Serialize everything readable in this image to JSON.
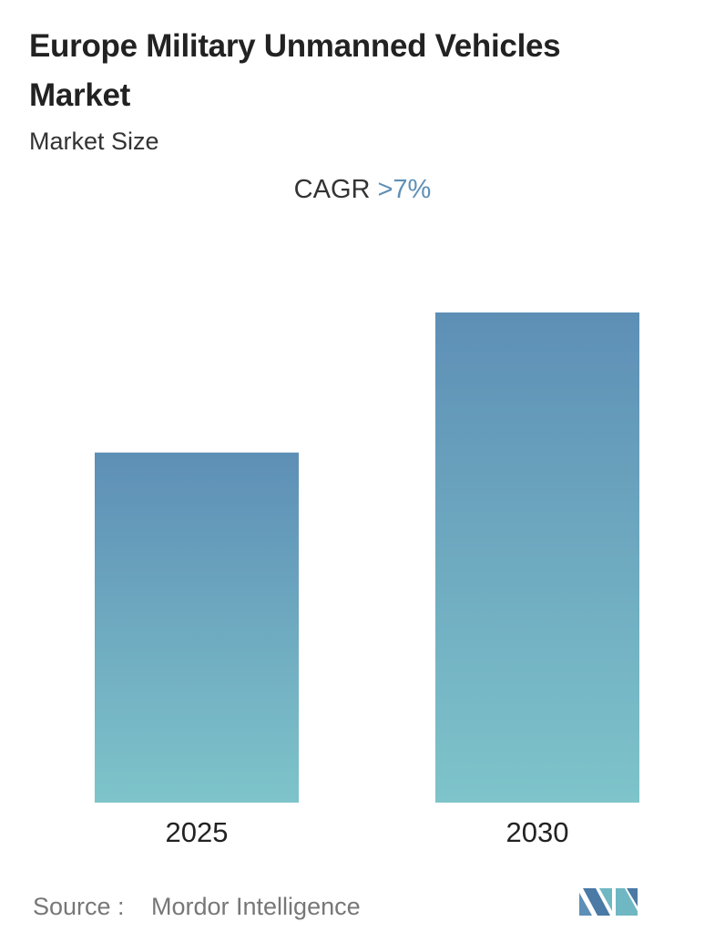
{
  "chart_data": {
    "type": "bar",
    "title": "Europe Military Unmanned Vehicles Market",
    "subtitle": "Market Size",
    "cagr_label": "CAGR",
    "cagr_value": ">7%",
    "categories": [
      "2025",
      "2030"
    ],
    "values": [
      100,
      140
    ],
    "gradient": [
      "#5e8fb6",
      "#7ec4ca"
    ],
    "source_label": "Source :",
    "source": "Mordor Intelligence"
  }
}
